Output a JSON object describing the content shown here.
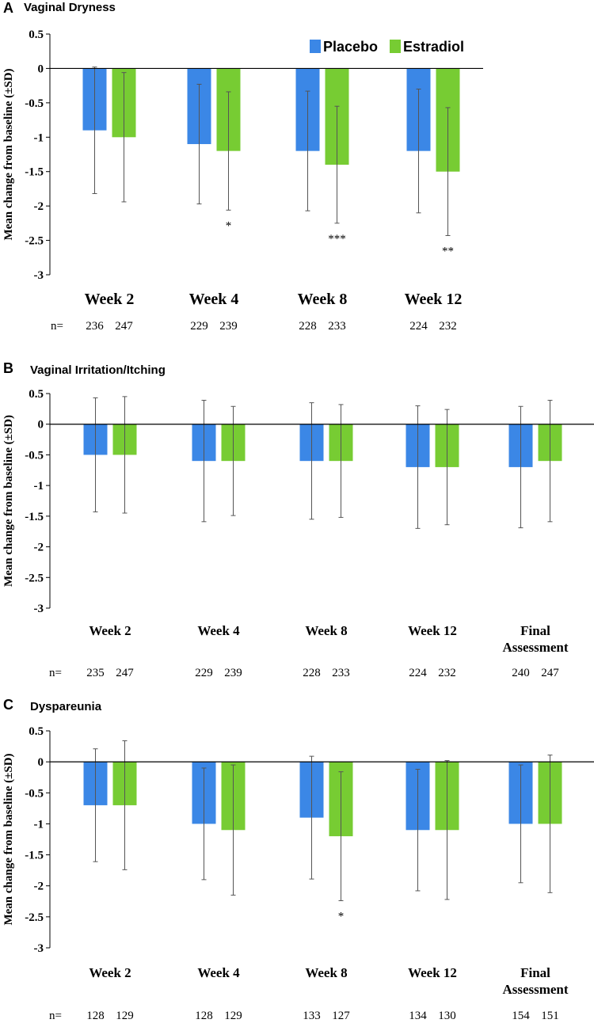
{
  "colors": {
    "placebo": "#3B87E6",
    "estradiol": "#77CC33",
    "axis": "#000000",
    "error": "#555555"
  },
  "legend": {
    "placebo": "Placebo",
    "estradiol": "Estradiol",
    "position": "top-right"
  },
  "chart_data": [
    {
      "type": "bar",
      "panel": "A",
      "title": "Vaginal Dryness",
      "ylabel": "Mean change from baseline (±SD)",
      "ylim": [
        -3,
        0.5
      ],
      "yticks": [
        "0.5",
        "0",
        "-0.5",
        "-1",
        "-1.5",
        "-2",
        "-2.5",
        "-3"
      ],
      "n_label": "n=",
      "categories": [
        {
          "label": [
            "Week 2"
          ],
          "n": [
            "236",
            "247"
          ],
          "sig": ""
        },
        {
          "label": [
            "Week 4"
          ],
          "n": [
            "229",
            "239"
          ],
          "sig": "*"
        },
        {
          "label": [
            "Week 8"
          ],
          "n": [
            "228",
            "233"
          ],
          "sig": "***"
        },
        {
          "label": [
            "Week 12"
          ],
          "n": [
            "224",
            "232"
          ],
          "sig": "**"
        }
      ],
      "series": [
        {
          "name": "Placebo",
          "values": [
            -0.9,
            -1.1,
            -1.2,
            -1.2
          ],
          "sd": [
            0.92,
            0.87,
            0.87,
            0.9
          ]
        },
        {
          "name": "Estradiol",
          "values": [
            -1.0,
            -1.2,
            -1.4,
            -1.5
          ],
          "sd": [
            0.94,
            0.86,
            0.85,
            0.93
          ]
        }
      ]
    },
    {
      "type": "bar",
      "panel": "B",
      "title": "Vaginal Irritation/Itching",
      "ylabel": "Mean change from baseline (±SD)",
      "ylim": [
        -3,
        0.5
      ],
      "yticks": [
        "0.5",
        "0",
        "-0.5",
        "-1",
        "-1.5",
        "-2",
        "-2.5",
        "-3"
      ],
      "n_label": "n=",
      "categories": [
        {
          "label": [
            "Week 2"
          ],
          "n": [
            "235",
            "247"
          ],
          "sig": ""
        },
        {
          "label": [
            "Week 4"
          ],
          "n": [
            "229",
            "239"
          ],
          "sig": ""
        },
        {
          "label": [
            "Week 8"
          ],
          "n": [
            "228",
            "233"
          ],
          "sig": ""
        },
        {
          "label": [
            "Week 12"
          ],
          "n": [
            "224",
            "232"
          ],
          "sig": ""
        },
        {
          "label": [
            "Final",
            "Assessment"
          ],
          "n": [
            "240",
            "247"
          ],
          "sig": ""
        }
      ],
      "series": [
        {
          "name": "Placebo",
          "values": [
            -0.5,
            -0.6,
            -0.6,
            -0.7,
            -0.7
          ],
          "sd": [
            0.93,
            0.99,
            0.95,
            1.0,
            0.99
          ]
        },
        {
          "name": "Estradiol",
          "values": [
            -0.5,
            -0.6,
            -0.6,
            -0.7,
            -0.6
          ],
          "sd": [
            0.95,
            0.89,
            0.92,
            0.94,
            0.99
          ]
        }
      ]
    },
    {
      "type": "bar",
      "panel": "C",
      "title": "Dyspareunia",
      "ylabel": "Mean change from baseline (±SD)",
      "ylim": [
        -3,
        0.5
      ],
      "yticks": [
        "0.5",
        "0",
        "-0.5",
        "-1",
        "-1.5",
        "-2",
        "-2.5",
        "-3"
      ],
      "n_label": "n=",
      "categories": [
        {
          "label": [
            "Week 2"
          ],
          "n": [
            "128",
            "129"
          ],
          "sig": ""
        },
        {
          "label": [
            "Week 4"
          ],
          "n": [
            "128",
            "129"
          ],
          "sig": ""
        },
        {
          "label": [
            "Week 8"
          ],
          "n": [
            "133",
            "127"
          ],
          "sig": "*"
        },
        {
          "label": [
            "Week 12"
          ],
          "n": [
            "134",
            "130"
          ],
          "sig": ""
        },
        {
          "label": [
            "Final",
            "Assessment"
          ],
          "n": [
            "154",
            "151"
          ],
          "sig": ""
        }
      ],
      "series": [
        {
          "name": "Placebo",
          "values": [
            -0.7,
            -1.0,
            -0.9,
            -1.1,
            -1.0
          ],
          "sd": [
            0.91,
            0.9,
            0.99,
            0.98,
            0.95
          ]
        },
        {
          "name": "Estradiol",
          "values": [
            -0.7,
            -1.1,
            -1.2,
            -1.1,
            -1.0
          ],
          "sd": [
            1.04,
            1.05,
            1.04,
            1.12,
            1.11
          ]
        }
      ]
    }
  ]
}
